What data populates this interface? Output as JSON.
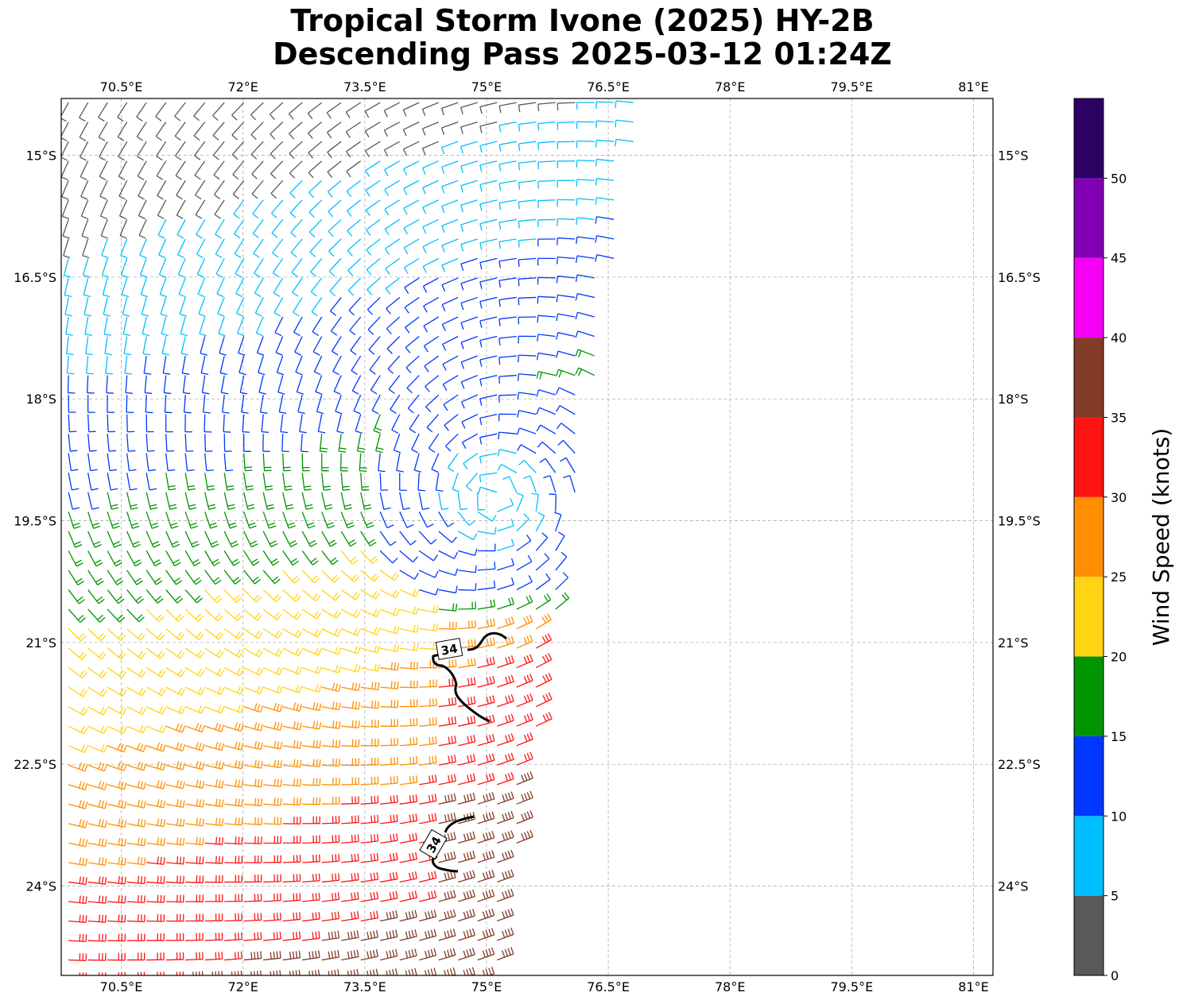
{
  "title": {
    "line1": "Tropical Storm Ivone (2025) HY-2B",
    "line2": "Descending Pass 2025-03-12 01:24Z"
  },
  "map": {
    "lon_ticks": [
      "70.5°E",
      "72°E",
      "73.5°E",
      "75°E",
      "76.5°E",
      "78°E",
      "79.5°E",
      "81°E"
    ],
    "lon_values": [
      70.5,
      72,
      73.5,
      75,
      76.5,
      78,
      79.5,
      81
    ],
    "lat_ticks": [
      "15°S",
      "16.5°S",
      "18°S",
      "19.5°S",
      "21°S",
      "22.5°S",
      "24°S"
    ],
    "lat_values": [
      -15,
      -16.5,
      -18,
      -19.5,
      -21,
      -22.5,
      -24
    ],
    "extent": {
      "lon_min": 69.76,
      "lon_max": 81.24,
      "lat_min": -25.1,
      "lat_max": -14.3
    },
    "grid": true,
    "contour": {
      "value": "34",
      "label": "34",
      "units": "knots"
    }
  },
  "storm_center": {
    "lon": 75.1,
    "lat": -19.2
  },
  "colorbar": {
    "label": "Wind Speed (knots)",
    "ticks": [
      "0",
      "5",
      "10",
      "15",
      "20",
      "25",
      "30",
      "35",
      "40",
      "45",
      "50"
    ],
    "bins": [
      {
        "from": 0,
        "to": 5,
        "color": "#595959"
      },
      {
        "from": 5,
        "to": 10,
        "color": "#00bfff"
      },
      {
        "from": 10,
        "to": 15,
        "color": "#0038ff"
      },
      {
        "from": 15,
        "to": 20,
        "color": "#009400"
      },
      {
        "from": 20,
        "to": 25,
        "color": "#ffd414"
      },
      {
        "from": 25,
        "to": 30,
        "color": "#ff8f00"
      },
      {
        "from": 30,
        "to": 35,
        "color": "#ff1414"
      },
      {
        "from": 35,
        "to": 40,
        "color": "#823c28"
      },
      {
        "from": 40,
        "to": 45,
        "color": "#f500f5"
      },
      {
        "from": 45,
        "to": 50,
        "color": "#8200b4"
      },
      {
        "from": 50,
        "to": 55,
        "color": "#2d0064"
      }
    ]
  }
}
